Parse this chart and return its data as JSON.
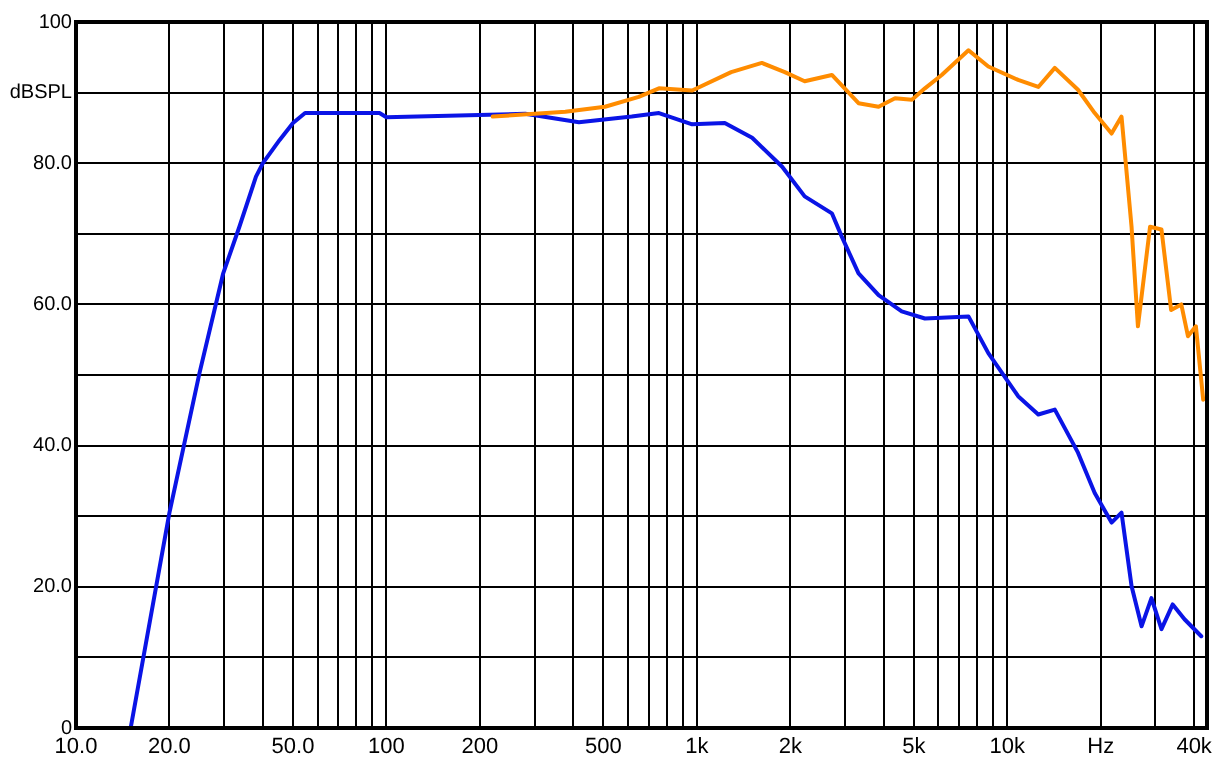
{
  "chart_data": {
    "type": "line",
    "log": "x",
    "grid": true,
    "legend": false,
    "marker": "none",
    "line_style": "solid",
    "xlim": [
      10,
      44000
    ],
    "xticks": [
      {
        "value": 10,
        "label": "10.0"
      },
      {
        "value": 20,
        "label": "20.0"
      },
      {
        "value": 30,
        "label": null
      },
      {
        "value": 40,
        "label": null
      },
      {
        "value": 50,
        "label": "50.0"
      },
      {
        "value": 60,
        "label": null
      },
      {
        "value": 70,
        "label": null
      },
      {
        "value": 80,
        "label": null
      },
      {
        "value": 90,
        "label": null
      },
      {
        "value": 100,
        "label": "100"
      },
      {
        "value": 200,
        "label": "200"
      },
      {
        "value": 300,
        "label": null
      },
      {
        "value": 400,
        "label": null
      },
      {
        "value": 500,
        "label": "500"
      },
      {
        "value": 600,
        "label": null
      },
      {
        "value": 700,
        "label": null
      },
      {
        "value": 800,
        "label": null
      },
      {
        "value": 900,
        "label": null
      },
      {
        "value": 1000,
        "label": "1k"
      },
      {
        "value": 2000,
        "label": "2k"
      },
      {
        "value": 3000,
        "label": null
      },
      {
        "value": 4000,
        "label": null
      },
      {
        "value": 5000,
        "label": "5k"
      },
      {
        "value": 6000,
        "label": null
      },
      {
        "value": 7000,
        "label": null
      },
      {
        "value": 8000,
        "label": null
      },
      {
        "value": 9000,
        "label": null
      },
      {
        "value": 10000,
        "label": "10k"
      },
      {
        "value": 20000,
        "label": "Hz"
      },
      {
        "value": 30000,
        "label": null
      },
      {
        "value": 40000,
        "label": "40k"
      }
    ],
    "ylim": [
      0,
      100
    ],
    "yticks": [
      {
        "value": 0,
        "label": "0"
      },
      {
        "value": 10,
        "label": null
      },
      {
        "value": 20,
        "label": "20.0"
      },
      {
        "value": 30,
        "label": null
      },
      {
        "value": 40,
        "label": "40.0"
      },
      {
        "value": 50,
        "label": null
      },
      {
        "value": 60,
        "label": "60.0"
      },
      {
        "value": 70,
        "label": null
      },
      {
        "value": 80,
        "label": "80.0"
      },
      {
        "value": 90,
        "label": "dBSPL"
      },
      {
        "value": 100,
        "label": "100"
      }
    ],
    "series": [
      {
        "color": "#ff8c00",
        "x": [
          220,
          377,
          506,
          650,
          755,
          966,
          1290,
          1620,
          1920,
          2225,
          2723,
          3318,
          3850,
          4350,
          4930,
          5430,
          6150,
          7500,
          8690,
          10840,
          12590,
          14230,
          16900,
          19130,
          21680,
          23340,
          25140,
          26360,
          28840,
          31390,
          33720,
          36360,
          38200,
          40520,
          42780
        ],
        "values": [
          86.6,
          87.3,
          88,
          89.4,
          90.6,
          90.3,
          92.9,
          94.2,
          92.9,
          91.6,
          92.5,
          88.5,
          88,
          89.2,
          89,
          90.6,
          92.5,
          96,
          93.7,
          91.8,
          90.8,
          93.5,
          90.4,
          87.1,
          84.2,
          86.6,
          71,
          56.9,
          71,
          70.6,
          59.2,
          60,
          55.5,
          56.9,
          46.5
        ]
      },
      {
        "color": "#0a14e6",
        "x": [
          15,
          20,
          25,
          29.8,
          33.6,
          38,
          40,
          45.3,
          50,
          54.7,
          95,
          100,
          280,
          417,
          617,
          755,
          966,
          1230,
          1507,
          1883,
          2225,
          2723,
          2930,
          3318,
          3850,
          4571,
          5430,
          7500,
          8690,
          10840,
          12590,
          14230,
          16900,
          19130,
          21680,
          23340,
          25140,
          27080,
          29140,
          31390,
          34120,
          37240,
          42170
        ],
        "values": [
          0,
          30.5,
          50.3,
          64.4,
          71,
          78.1,
          80,
          83.3,
          85.7,
          87.1,
          87.1,
          86.5,
          87,
          85.8,
          86.6,
          87.1,
          85.5,
          85.7,
          83.6,
          79.5,
          75.3,
          72.9,
          69.6,
          64.4,
          61.3,
          59,
          58,
          58.3,
          53.1,
          47,
          44.4,
          45.1,
          39,
          33.3,
          29.1,
          30.5,
          20.1,
          14.4,
          18.4,
          14,
          17.5,
          15.4,
          13
        ]
      }
    ]
  }
}
